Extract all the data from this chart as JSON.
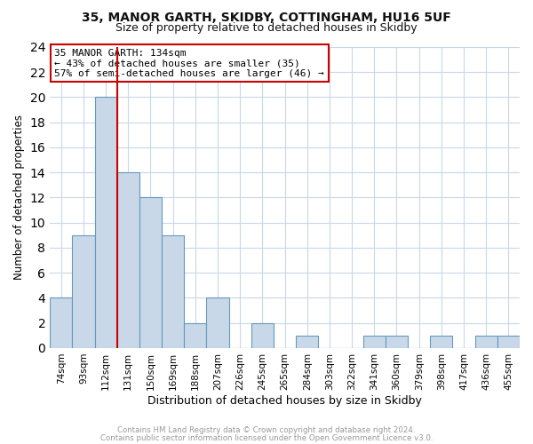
{
  "title_line1": "35, MANOR GARTH, SKIDBY, COTTINGHAM, HU16 5UF",
  "title_line2": "Size of property relative to detached houses in Skidby",
  "xlabel": "Distribution of detached houses by size in Skidby",
  "ylabel": "Number of detached properties",
  "bin_labels": [
    "74sqm",
    "93sqm",
    "112sqm",
    "131sqm",
    "150sqm",
    "169sqm",
    "188sqm",
    "207sqm",
    "226sqm",
    "245sqm",
    "265sqm",
    "284sqm",
    "303sqm",
    "322sqm",
    "341sqm",
    "360sqm",
    "379sqm",
    "398sqm",
    "417sqm",
    "436sqm",
    "455sqm"
  ],
  "bar_values": [
    4,
    9,
    20,
    14,
    12,
    9,
    2,
    4,
    0,
    2,
    0,
    1,
    0,
    0,
    1,
    1,
    0,
    1,
    0,
    1,
    1
  ],
  "bar_color": "#c8d8e8",
  "bar_edge_color": "#6699bb",
  "vline_x": 2.5,
  "vline_color": "#cc0000",
  "ylim": [
    0,
    24
  ],
  "yticks": [
    0,
    2,
    4,
    6,
    8,
    10,
    12,
    14,
    16,
    18,
    20,
    22,
    24
  ],
  "annotation_title": "35 MANOR GARTH: 134sqm",
  "annotation_line1": "← 43% of detached houses are smaller (35)",
  "annotation_line2": "57% of semi-detached houses are larger (46) →",
  "annotation_box_color": "#ffffff",
  "annotation_box_edge": "#cc0000",
  "footer_line1": "Contains HM Land Registry data © Crown copyright and database right 2024.",
  "footer_line2": "Contains public sector information licensed under the Open Government Licence v3.0.",
  "background_color": "#ffffff",
  "grid_color": "#c8d8e8"
}
